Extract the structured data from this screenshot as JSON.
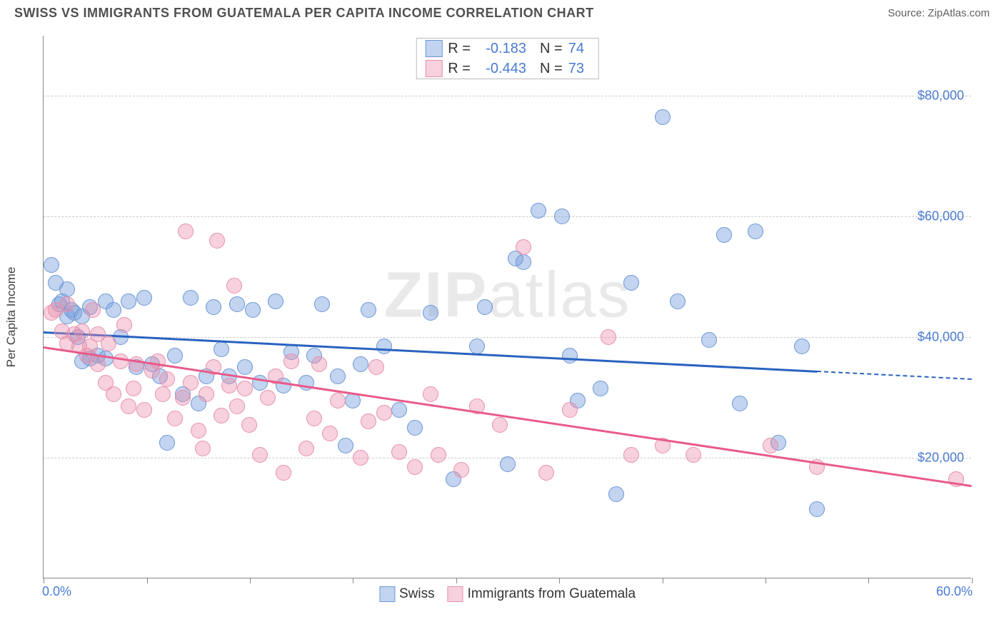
{
  "header": {
    "title": "SWISS VS IMMIGRANTS FROM GUATEMALA PER CAPITA INCOME CORRELATION CHART",
    "source_prefix": "Source: ",
    "source_name": "ZipAtlas.com"
  },
  "chart": {
    "type": "scatter",
    "ylabel": "Per Capita Income",
    "watermark": {
      "part1": "ZIP",
      "part2": "atlas"
    },
    "xlim": [
      0,
      60
    ],
    "ylim": [
      0,
      90000
    ],
    "background_color": "#ffffff",
    "grid_color": "#cccccc",
    "axis_color": "#888888",
    "tick_label_color": "#4a7bd0",
    "ylabel_color": "#404040",
    "y_gridlines": [
      20000,
      40000,
      60000,
      80000
    ],
    "y_tick_labels": [
      "$20,000",
      "$40,000",
      "$60,000",
      "$80,000"
    ],
    "y_tick_fontsize": 18,
    "x_ticks": [
      0,
      6.67,
      13.33,
      20,
      26.67,
      33.33,
      40,
      46.67,
      53.33,
      60
    ],
    "x_min_label": "0.0%",
    "x_max_label": "60.0%",
    "series": [
      {
        "name": "Swiss",
        "fill": "rgba(120,160,220,0.45)",
        "stroke": "#6b96d6",
        "trend_color": "#2a63c0",
        "marker_radius": 11,
        "stroke_width": 1,
        "R": "-0.183",
        "N": "74",
        "trend": {
          "x1": 0,
          "y1": 41000,
          "x2": 50,
          "y2": 34500,
          "ext_x2": 60,
          "ext_y2": 33200
        },
        "points": [
          [
            0.5,
            52000
          ],
          [
            0.8,
            49000
          ],
          [
            1,
            45500
          ],
          [
            1.2,
            46000
          ],
          [
            1.5,
            43500
          ],
          [
            1.5,
            48000
          ],
          [
            1.8,
            44500
          ],
          [
            2,
            44000
          ],
          [
            2.2,
            40000
          ],
          [
            2.5,
            36000
          ],
          [
            2.5,
            43500
          ],
          [
            3,
            45000
          ],
          [
            3,
            36500
          ],
          [
            3.5,
            37000
          ],
          [
            4,
            46000
          ],
          [
            4,
            36500
          ],
          [
            4.5,
            44500
          ],
          [
            5,
            40000
          ],
          [
            5.5,
            46000
          ],
          [
            6,
            35000
          ],
          [
            6.5,
            46500
          ],
          [
            7,
            35500
          ],
          [
            7.5,
            33500
          ],
          [
            8,
            22500
          ],
          [
            8.5,
            37000
          ],
          [
            9,
            30500
          ],
          [
            9.5,
            46500
          ],
          [
            10,
            29000
          ],
          [
            10.5,
            33500
          ],
          [
            11,
            45000
          ],
          [
            11.5,
            38000
          ],
          [
            12,
            33500
          ],
          [
            12.5,
            45500
          ],
          [
            13,
            35000
          ],
          [
            13.5,
            44500
          ],
          [
            14,
            32500
          ],
          [
            15,
            46000
          ],
          [
            15.5,
            32000
          ],
          [
            16,
            37500
          ],
          [
            17,
            32500
          ],
          [
            17.5,
            37000
          ],
          [
            18,
            45500
          ],
          [
            19,
            33500
          ],
          [
            19.5,
            22000
          ],
          [
            20,
            29500
          ],
          [
            20.5,
            35500
          ],
          [
            21,
            44500
          ],
          [
            22,
            38500
          ],
          [
            23,
            28000
          ],
          [
            24,
            25000
          ],
          [
            25,
            44000
          ],
          [
            26.5,
            16500
          ],
          [
            28,
            38500
          ],
          [
            28.5,
            45000
          ],
          [
            30,
            19000
          ],
          [
            30.5,
            53000
          ],
          [
            31,
            52500
          ],
          [
            32,
            61000
          ],
          [
            33.5,
            60000
          ],
          [
            34,
            37000
          ],
          [
            34.5,
            29500
          ],
          [
            36,
            31500
          ],
          [
            37,
            14000
          ],
          [
            38,
            49000
          ],
          [
            40,
            76500
          ],
          [
            41,
            46000
          ],
          [
            43,
            39500
          ],
          [
            44,
            57000
          ],
          [
            45,
            29000
          ],
          [
            46,
            57500
          ],
          [
            47.5,
            22500
          ],
          [
            49,
            38500
          ],
          [
            50,
            11500
          ]
        ]
      },
      {
        "name": "Immigrants from Guatemala",
        "fill": "rgba(235,140,170,0.40)",
        "stroke": "#e690ad",
        "trend_color": "#e85b8a",
        "marker_radius": 11,
        "stroke_width": 1,
        "R": "-0.443",
        "N": "73",
        "trend": {
          "x1": 0,
          "y1": 38500,
          "x2": 60,
          "y2": 15500
        },
        "points": [
          [
            0.5,
            44000
          ],
          [
            0.8,
            44500
          ],
          [
            1.2,
            41000
          ],
          [
            1.5,
            39000
          ],
          [
            1.5,
            45500
          ],
          [
            2,
            40500
          ],
          [
            2.3,
            38500
          ],
          [
            2.5,
            41000
          ],
          [
            2.8,
            37000
          ],
          [
            3,
            38500
          ],
          [
            3.2,
            44500
          ],
          [
            3.5,
            35500
          ],
          [
            3.5,
            40500
          ],
          [
            4,
            32500
          ],
          [
            4.2,
            39000
          ],
          [
            4.5,
            30500
          ],
          [
            5,
            36000
          ],
          [
            5.2,
            42000
          ],
          [
            5.5,
            28500
          ],
          [
            5.8,
            31500
          ],
          [
            6,
            35500
          ],
          [
            6.5,
            28000
          ],
          [
            7,
            34500
          ],
          [
            7.4,
            36000
          ],
          [
            7.7,
            30500
          ],
          [
            8,
            33000
          ],
          [
            8.5,
            26500
          ],
          [
            9,
            30000
          ],
          [
            9.2,
            57500
          ],
          [
            9.5,
            32500
          ],
          [
            10,
            24500
          ],
          [
            10.3,
            21500
          ],
          [
            10.5,
            30500
          ],
          [
            11,
            35000
          ],
          [
            11.2,
            56000
          ],
          [
            11.5,
            27000
          ],
          [
            12,
            32000
          ],
          [
            12.3,
            48500
          ],
          [
            12.5,
            28500
          ],
          [
            13,
            31500
          ],
          [
            13.3,
            25500
          ],
          [
            14,
            20500
          ],
          [
            14.5,
            30000
          ],
          [
            15,
            33500
          ],
          [
            15.5,
            17500
          ],
          [
            16,
            36000
          ],
          [
            17,
            21500
          ],
          [
            17.5,
            26500
          ],
          [
            17.8,
            35500
          ],
          [
            18.5,
            24000
          ],
          [
            19,
            29500
          ],
          [
            20.5,
            20000
          ],
          [
            21,
            26000
          ],
          [
            21.5,
            35000
          ],
          [
            22,
            27500
          ],
          [
            23,
            21000
          ],
          [
            24,
            18500
          ],
          [
            25,
            30500
          ],
          [
            25.5,
            20500
          ],
          [
            27,
            18000
          ],
          [
            28,
            28500
          ],
          [
            29.5,
            25500
          ],
          [
            31,
            55000
          ],
          [
            32.5,
            17500
          ],
          [
            34,
            28000
          ],
          [
            36.5,
            40000
          ],
          [
            38,
            20500
          ],
          [
            40,
            22000
          ],
          [
            42,
            20500
          ],
          [
            47,
            22000
          ],
          [
            50,
            18500
          ],
          [
            59,
            16500
          ]
        ]
      }
    ]
  },
  "legend_bottom": {
    "item1": "Swiss",
    "item2": "Immigrants from Guatemala"
  }
}
